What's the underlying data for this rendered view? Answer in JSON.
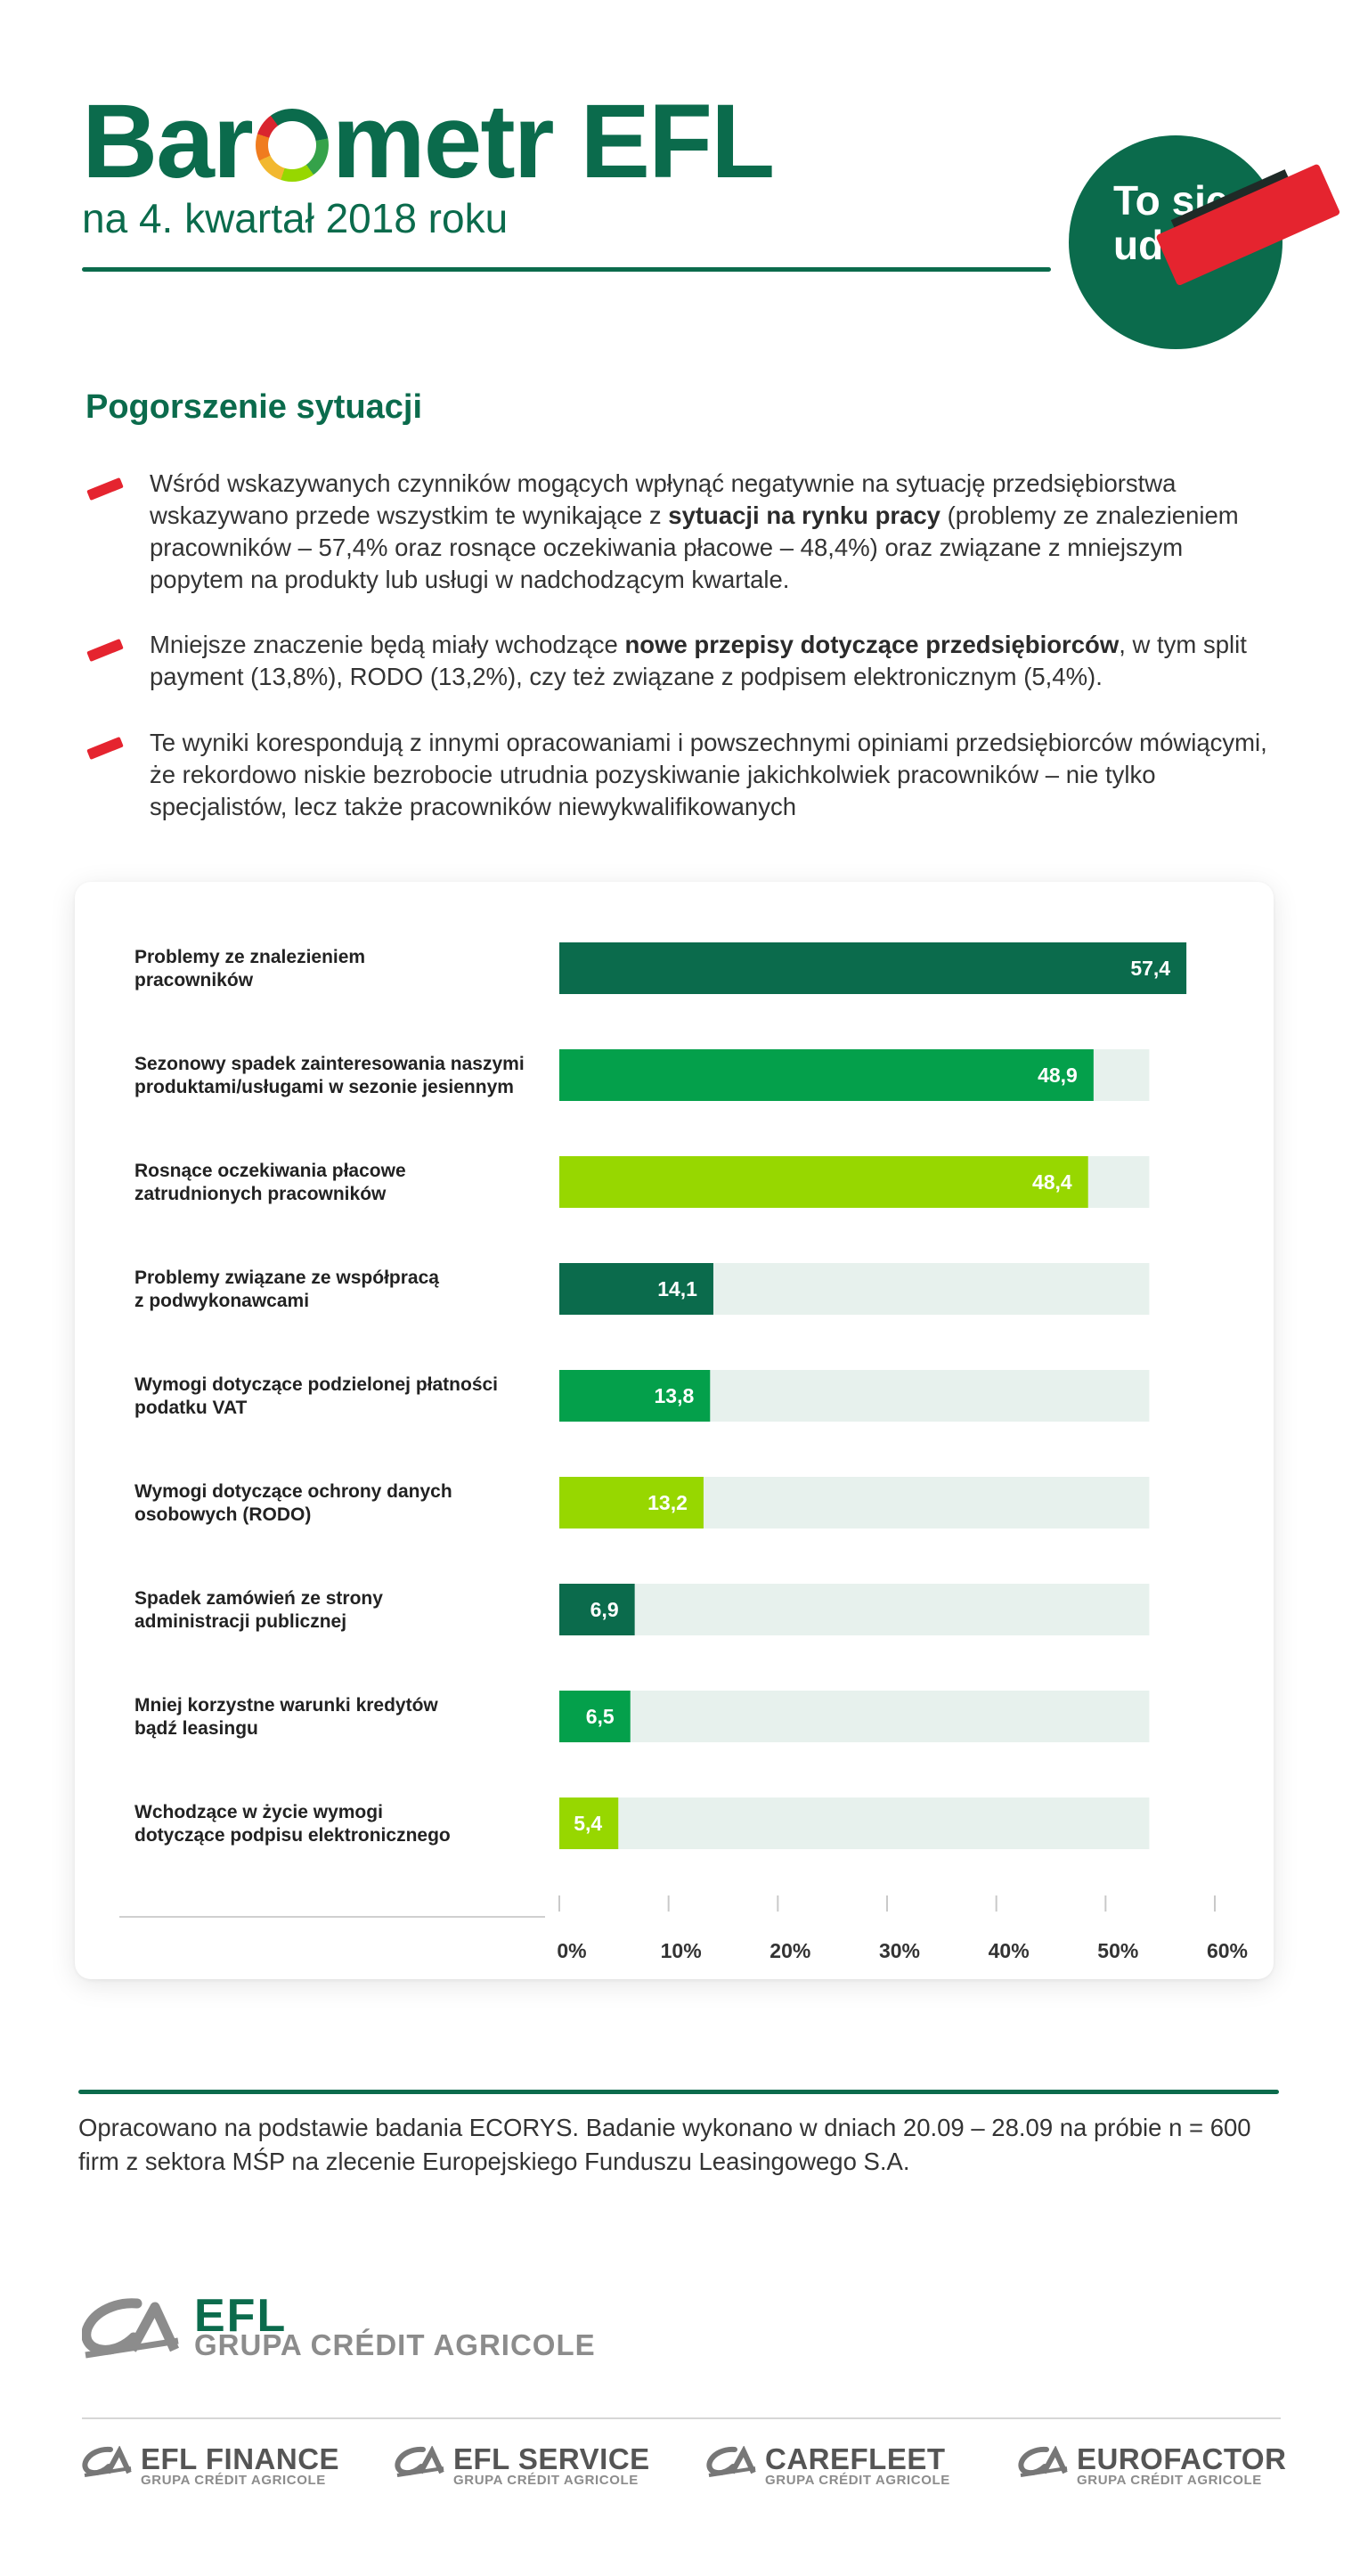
{
  "header": {
    "title_part1": "Bar",
    "title_part2": "metr EFL",
    "subtitle": "na 4. kwartał 2018 roku",
    "badge_text": "To się uda!"
  },
  "section": {
    "heading": "Pogorszenie sytuacji",
    "bullets": [
      {
        "pre": "Wśród wskazywanych czynników mogących wpłynąć negatywnie na sytuację przedsiębiorstwa wskazywano przede wszystkim te wynikające z ",
        "bold": "sytuacji na rynku pracy",
        "post": " (problemy ze znalezieniem pracowników – 57,4% oraz rosnące oczekiwania płacowe – 48,4%) oraz związane z mniejszym popytem na produkty lub usługi w nadchodzącym kwartale."
      },
      {
        "pre": "Mniejsze znaczenie będą miały wchodzące ",
        "bold": "nowe przepisy dotyczące przedsiębiorców",
        "post": ", w tym split payment (13,8%), RODO (13,2%), czy też związane z podpisem elektronicznym (5,4%)."
      },
      {
        "pre": "Te wyniki korespondują z innymi opracowaniami i powszechnymi opiniami przedsiębiorców mówiącymi, że rekordowo niskie bezrobocie utrudnia pozyskiwanie jakichkolwiek pracowników – nie tylko specjalistów, lecz także pracowników niewykwalifikowanych",
        "bold": "",
        "post": ""
      }
    ]
  },
  "chart_data": {
    "type": "bar",
    "orientation": "horizontal",
    "title": "",
    "xlabel": "",
    "ylabel": "",
    "xlim": [
      0,
      60
    ],
    "ticks": [
      "0%",
      "10%",
      "20%",
      "30%",
      "40%",
      "50%",
      "60%"
    ],
    "tick_values": [
      0,
      10,
      20,
      30,
      40,
      50,
      60
    ],
    "categories": [
      [
        "Problemy ze znalezieniem",
        "pracowników"
      ],
      [
        "Sezonowy spadek zainteresowania naszymi",
        "produktami/usługami w sezonie jesiennym"
      ],
      [
        "Rosnące oczekiwania płacowe",
        "zatrudnionych pracowników"
      ],
      [
        "Problemy związane ze współpracą",
        "z podwykonawcami"
      ],
      [
        "Wymogi dotyczące podzielonej płatności",
        "podatku VAT"
      ],
      [
        "Wymogi dotyczące ochrony danych",
        "osobowych (RODO)"
      ],
      [
        "Spadek zamówień ze strony",
        "administracji publicznej"
      ],
      [
        "Mniej korzystne warunki kredytów",
        "bądź leasingu"
      ],
      [
        "Wchodzące w życie wymogi",
        "dotyczące podpisu elektronicznego"
      ]
    ],
    "values": [
      57.4,
      48.9,
      48.4,
      14.1,
      13.8,
      13.2,
      6.9,
      6.5,
      5.4
    ],
    "value_labels": [
      "57,4",
      "48,9",
      "48,4",
      "14,1",
      "13,8",
      "13,2",
      "6,9",
      "6,5",
      "5,4"
    ],
    "bar_colors": [
      "#0b6b4c",
      "#04a04b",
      "#97d700",
      "#0b6b4c",
      "#04a04b",
      "#97d700",
      "#0b6b4c",
      "#04a04b",
      "#97d700"
    ],
    "track_color": "#e7f1ed"
  },
  "footer": {
    "note": "Opracowano na podstawie badania ECORYS. Badanie wykonano w dniach 20.09 – 28.09 na próbie n = 600 firm z sektora MŚP na zlecenie Europejskiego Funduszu Leasingowego S.A.",
    "brand_name": "EFL",
    "brand_group": "GRUPA CRÉDIT AGRICOLE",
    "sub_brands": [
      {
        "name": "EFL FINANCE",
        "group": "GRUPA CRÉDIT AGRICOLE"
      },
      {
        "name": "EFL SERVICE",
        "group": "GRUPA CRÉDIT AGRICOLE"
      },
      {
        "name": "CAREFLEET",
        "group": "GRUPA CRÉDIT AGRICOLE"
      },
      {
        "name": "EUROFACTOR",
        "group": "GRUPA CRÉDIT AGRICOLE"
      }
    ]
  },
  "colors": {
    "brand_green": "#0b6b4c",
    "accent_red": "#e5242f"
  }
}
